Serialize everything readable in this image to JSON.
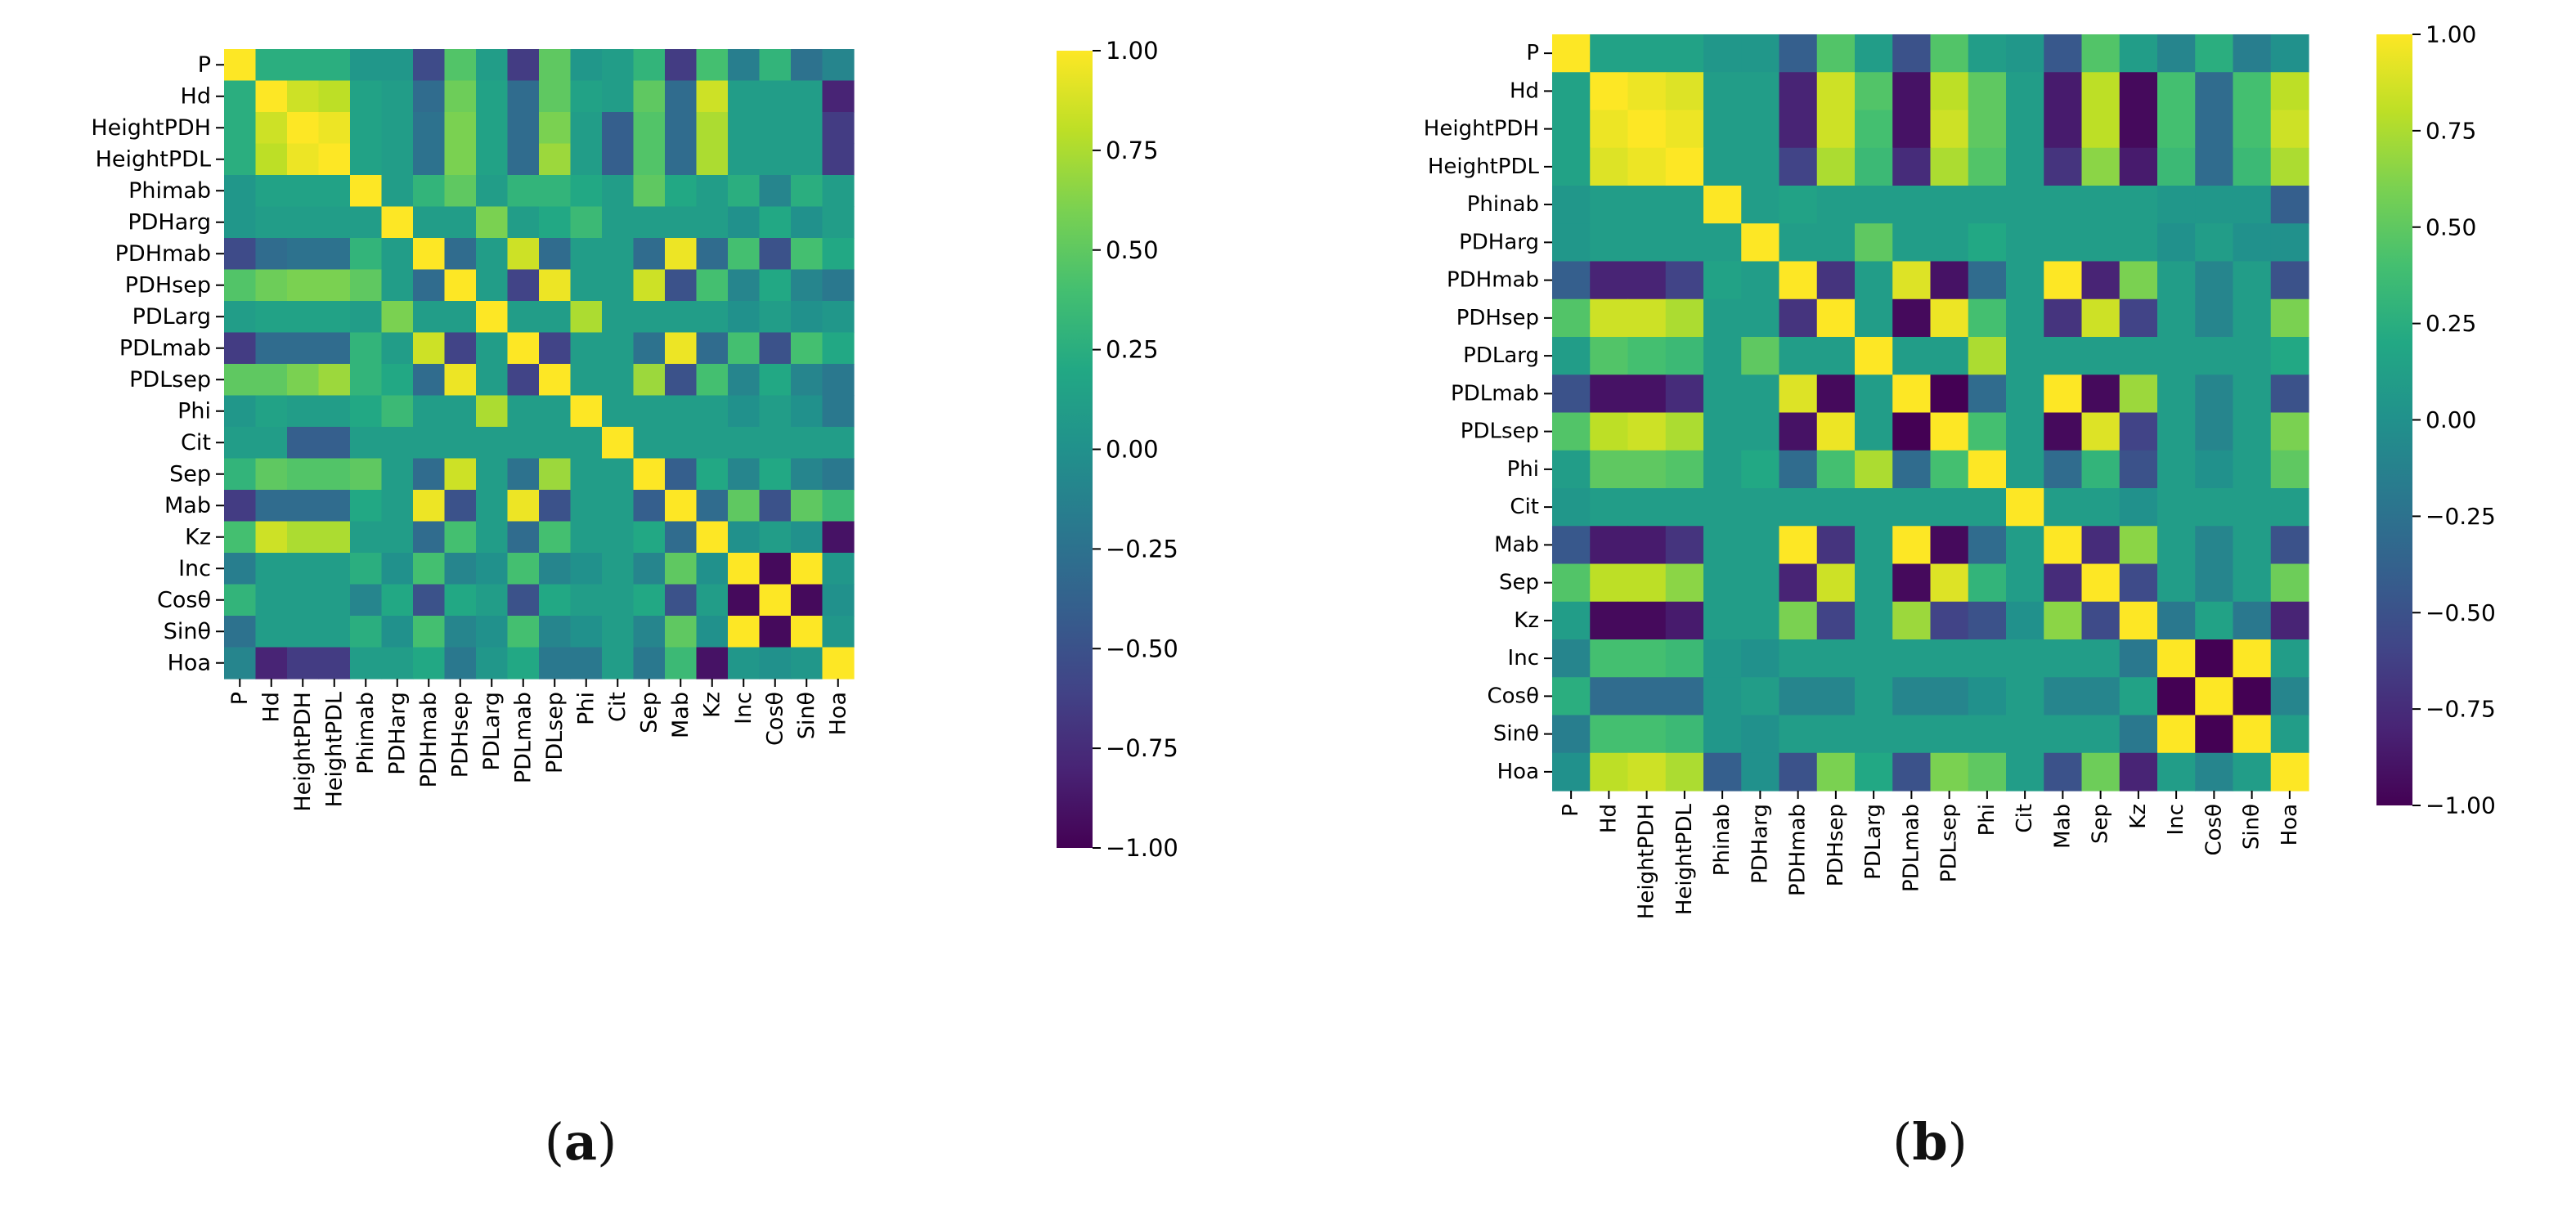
{
  "colormap": "viridis",
  "colorbar": {
    "ticks": [
      "1.00",
      "0.75",
      "0.50",
      "0.25",
      "0.00",
      "−0.25",
      "−0.50",
      "−0.75",
      "−1.00"
    ],
    "range": [
      -1,
      1
    ]
  },
  "captions": [
    {
      "open": "(",
      "letter": "a",
      "close": ")"
    },
    {
      "open": "(",
      "letter": "b",
      "close": ")"
    }
  ],
  "chart_data": [
    {
      "type": "heatmap",
      "panel": "a",
      "labels": [
        "P",
        "Hd",
        "HeightPDH",
        "HeightPDL",
        "Phimab",
        "PDHarg",
        "PDHmab",
        "PDHsep",
        "PDLarg",
        "PDLmab",
        "PDLsep",
        "Phi",
        "Cit",
        "Sep",
        "Mab",
        "Kz",
        "Inc",
        "Cosθ",
        "Sinθ",
        "Hoa"
      ],
      "vmin": -1,
      "vmax": 1,
      "matrix": [
        [
          1.0,
          0.25,
          0.25,
          0.25,
          0.05,
          0.05,
          -0.55,
          0.45,
          0.1,
          -0.65,
          0.5,
          0.05,
          0.1,
          0.3,
          -0.65,
          0.4,
          -0.15,
          0.3,
          -0.25,
          -0.1
        ],
        [
          0.25,
          1.0,
          0.85,
          0.8,
          0.15,
          0.1,
          -0.3,
          0.55,
          0.15,
          -0.3,
          0.5,
          0.15,
          0.1,
          0.5,
          -0.3,
          0.85,
          0.1,
          0.1,
          0.1,
          -0.8
        ],
        [
          0.25,
          0.85,
          1.0,
          0.95,
          0.15,
          0.1,
          -0.25,
          0.6,
          0.15,
          -0.3,
          0.6,
          0.1,
          -0.4,
          0.45,
          -0.3,
          0.75,
          0.1,
          0.1,
          0.1,
          -0.65
        ],
        [
          0.25,
          0.8,
          0.95,
          1.0,
          0.15,
          0.1,
          -0.25,
          0.6,
          0.15,
          -0.3,
          0.7,
          0.1,
          -0.4,
          0.45,
          -0.3,
          0.75,
          0.1,
          0.1,
          0.1,
          -0.65
        ],
        [
          0.05,
          0.15,
          0.15,
          0.15,
          1.0,
          0.1,
          0.3,
          0.5,
          0.1,
          0.3,
          0.3,
          0.2,
          0.1,
          0.5,
          0.2,
          0.1,
          0.25,
          -0.1,
          0.25,
          0.1
        ],
        [
          0.05,
          0.1,
          0.1,
          0.1,
          0.1,
          1.0,
          0.1,
          0.1,
          0.6,
          0.1,
          0.2,
          0.35,
          0.1,
          0.1,
          0.1,
          0.1,
          0.0,
          0.2,
          0.0,
          0.1
        ],
        [
          -0.55,
          -0.3,
          -0.25,
          -0.25,
          0.3,
          0.1,
          1.0,
          -0.3,
          0.1,
          0.85,
          -0.3,
          0.1,
          0.1,
          -0.3,
          0.95,
          -0.3,
          0.4,
          -0.5,
          0.4,
          0.2
        ],
        [
          0.45,
          0.55,
          0.6,
          0.6,
          0.5,
          0.1,
          -0.3,
          1.0,
          0.1,
          -0.6,
          0.95,
          0.1,
          0.1,
          0.85,
          -0.5,
          0.4,
          -0.1,
          0.2,
          -0.1,
          -0.2
        ],
        [
          0.1,
          0.15,
          0.15,
          0.15,
          0.1,
          0.6,
          0.1,
          0.1,
          1.0,
          0.1,
          0.1,
          0.75,
          0.1,
          0.1,
          0.1,
          0.1,
          0.0,
          0.1,
          0.0,
          0.05
        ],
        [
          -0.65,
          -0.3,
          -0.3,
          -0.3,
          0.3,
          0.1,
          0.85,
          -0.6,
          0.1,
          1.0,
          -0.6,
          0.1,
          0.1,
          -0.25,
          0.95,
          -0.3,
          0.4,
          -0.5,
          0.4,
          0.2
        ],
        [
          0.5,
          0.5,
          0.6,
          0.7,
          0.3,
          0.2,
          -0.3,
          0.95,
          0.1,
          -0.6,
          1.0,
          0.1,
          0.1,
          0.7,
          -0.5,
          0.4,
          -0.1,
          0.2,
          -0.1,
          -0.2
        ],
        [
          0.05,
          0.15,
          0.1,
          0.1,
          0.2,
          0.35,
          0.1,
          0.1,
          0.75,
          0.1,
          0.1,
          1.0,
          0.1,
          0.1,
          0.1,
          0.1,
          0.0,
          0.1,
          0.0,
          -0.2
        ],
        [
          0.1,
          0.1,
          -0.4,
          -0.4,
          0.1,
          0.1,
          0.1,
          0.1,
          0.1,
          0.1,
          0.1,
          0.1,
          1.0,
          0.1,
          0.1,
          0.1,
          0.1,
          0.1,
          0.1,
          0.1
        ],
        [
          0.3,
          0.5,
          0.45,
          0.45,
          0.5,
          0.1,
          -0.3,
          0.85,
          0.1,
          -0.25,
          0.7,
          0.1,
          0.1,
          1.0,
          -0.4,
          0.2,
          -0.1,
          0.2,
          -0.1,
          -0.2
        ],
        [
          -0.65,
          -0.3,
          -0.3,
          -0.3,
          0.2,
          0.1,
          0.95,
          -0.5,
          0.1,
          0.95,
          -0.5,
          0.1,
          0.1,
          -0.4,
          1.0,
          -0.3,
          0.5,
          -0.5,
          0.5,
          0.35
        ],
        [
          0.4,
          0.85,
          0.75,
          0.75,
          0.1,
          0.1,
          -0.3,
          0.4,
          0.1,
          -0.3,
          0.4,
          0.1,
          0.1,
          0.2,
          -0.3,
          1.0,
          0.0,
          0.1,
          0.0,
          -0.9
        ],
        [
          -0.15,
          0.1,
          0.1,
          0.1,
          0.25,
          0.0,
          0.4,
          -0.1,
          0.0,
          0.4,
          -0.1,
          0.0,
          0.1,
          -0.1,
          0.5,
          0.0,
          1.0,
          -0.95,
          1.0,
          0.05
        ],
        [
          0.3,
          0.1,
          0.1,
          0.1,
          -0.1,
          0.2,
          -0.5,
          0.2,
          0.1,
          -0.5,
          0.2,
          0.1,
          0.1,
          0.2,
          -0.5,
          0.1,
          -0.95,
          1.0,
          -0.95,
          0.0
        ],
        [
          -0.25,
          0.1,
          0.1,
          0.1,
          0.25,
          0.0,
          0.4,
          -0.1,
          0.0,
          0.4,
          -0.1,
          0.0,
          0.1,
          -0.1,
          0.5,
          0.0,
          1.0,
          -0.95,
          1.0,
          0.05
        ],
        [
          -0.1,
          -0.8,
          -0.65,
          -0.65,
          0.1,
          0.1,
          0.2,
          -0.2,
          0.05,
          0.2,
          -0.2,
          -0.2,
          0.1,
          -0.2,
          0.35,
          -0.9,
          0.05,
          0.0,
          0.05,
          1.0
        ]
      ]
    },
    {
      "type": "heatmap",
      "panel": "b",
      "labels": [
        "P",
        "Hd",
        "HeightPDH",
        "HeightPDL",
        "Phinab",
        "PDHarg",
        "PDHmab",
        "PDHsep",
        "PDLarg",
        "PDLmab",
        "PDLsep",
        "Phi",
        "Cit",
        "Mab",
        "Sep",
        "Kz",
        "Inc",
        "Cosθ",
        "Sinθ",
        "Hoa"
      ],
      "vmin": -1,
      "vmax": 1,
      "matrix": [
        [
          1.0,
          0.15,
          0.15,
          0.15,
          0.05,
          0.05,
          -0.4,
          0.45,
          0.1,
          -0.5,
          0.45,
          0.1,
          0.05,
          -0.45,
          0.45,
          0.1,
          -0.1,
          0.25,
          -0.15,
          0.0
        ],
        [
          0.15,
          1.0,
          0.95,
          0.9,
          0.1,
          0.1,
          -0.8,
          0.85,
          0.45,
          -0.9,
          0.8,
          0.5,
          0.1,
          -0.85,
          0.8,
          -0.95,
          0.4,
          -0.3,
          0.4,
          0.8
        ],
        [
          0.15,
          0.95,
          1.0,
          0.95,
          0.1,
          0.1,
          -0.8,
          0.85,
          0.4,
          -0.9,
          0.85,
          0.5,
          0.1,
          -0.85,
          0.8,
          -0.95,
          0.4,
          -0.3,
          0.4,
          0.85
        ],
        [
          0.15,
          0.9,
          0.95,
          1.0,
          0.1,
          0.1,
          -0.6,
          0.75,
          0.35,
          -0.75,
          0.75,
          0.45,
          0.1,
          -0.7,
          0.65,
          -0.85,
          0.35,
          -0.3,
          0.35,
          0.75
        ],
        [
          0.05,
          0.1,
          0.1,
          0.1,
          1.0,
          0.1,
          0.15,
          0.1,
          0.1,
          0.1,
          0.1,
          0.1,
          0.1,
          0.1,
          0.1,
          0.1,
          0.05,
          0.05,
          0.05,
          -0.4
        ],
        [
          0.05,
          0.1,
          0.1,
          0.1,
          0.1,
          1.0,
          0.1,
          0.1,
          0.5,
          0.1,
          0.1,
          0.2,
          0.1,
          0.1,
          0.1,
          0.1,
          0.0,
          0.1,
          0.0,
          0.0
        ],
        [
          -0.4,
          -0.8,
          -0.8,
          -0.6,
          0.15,
          0.1,
          1.0,
          -0.7,
          0.1,
          0.9,
          -0.9,
          -0.3,
          0.1,
          1.0,
          -0.8,
          0.6,
          0.1,
          -0.1,
          0.1,
          -0.5
        ],
        [
          0.45,
          0.85,
          0.85,
          0.75,
          0.1,
          0.1,
          -0.7,
          1.0,
          0.1,
          -0.95,
          0.95,
          0.4,
          0.1,
          -0.7,
          0.85,
          -0.6,
          0.1,
          -0.1,
          0.1,
          0.6
        ],
        [
          0.1,
          0.45,
          0.4,
          0.35,
          0.1,
          0.5,
          0.1,
          0.1,
          1.0,
          0.1,
          0.1,
          0.75,
          0.1,
          0.1,
          0.1,
          0.1,
          0.1,
          0.1,
          0.1,
          0.2
        ],
        [
          -0.5,
          -0.9,
          -0.9,
          -0.75,
          0.1,
          0.1,
          0.9,
          -0.95,
          0.1,
          1.0,
          -1.0,
          -0.3,
          0.1,
          1.0,
          -0.95,
          0.7,
          0.1,
          -0.1,
          0.1,
          -0.5
        ],
        [
          0.45,
          0.8,
          0.85,
          0.75,
          0.1,
          0.1,
          -0.9,
          0.95,
          0.1,
          -1.0,
          1.0,
          0.4,
          0.1,
          -0.95,
          0.9,
          -0.6,
          0.1,
          -0.1,
          0.1,
          0.6
        ],
        [
          0.1,
          0.5,
          0.5,
          0.45,
          0.1,
          0.2,
          -0.3,
          0.4,
          0.75,
          -0.3,
          0.4,
          1.0,
          0.1,
          -0.3,
          0.3,
          -0.5,
          0.1,
          0.0,
          0.1,
          0.5
        ],
        [
          0.05,
          0.1,
          0.1,
          0.1,
          0.1,
          0.1,
          0.1,
          0.1,
          0.1,
          0.1,
          0.1,
          0.1,
          1.0,
          0.1,
          0.1,
          0.0,
          0.1,
          0.1,
          0.1,
          0.1
        ],
        [
          -0.45,
          -0.85,
          -0.85,
          -0.7,
          0.1,
          0.1,
          1.0,
          -0.7,
          0.1,
          1.0,
          -0.95,
          -0.3,
          0.1,
          1.0,
          -0.75,
          0.65,
          0.1,
          -0.1,
          0.1,
          -0.5
        ],
        [
          0.45,
          0.8,
          0.8,
          0.65,
          0.1,
          0.1,
          -0.8,
          0.85,
          0.1,
          -0.95,
          0.9,
          0.3,
          0.1,
          -0.75,
          1.0,
          -0.55,
          0.1,
          -0.1,
          0.1,
          0.55
        ],
        [
          0.1,
          -0.95,
          -0.95,
          -0.85,
          0.1,
          0.1,
          0.6,
          -0.6,
          0.1,
          0.7,
          -0.6,
          -0.5,
          0.0,
          0.65,
          -0.55,
          1.0,
          -0.2,
          0.15,
          -0.2,
          -0.8
        ],
        [
          -0.1,
          0.4,
          0.4,
          0.35,
          0.05,
          0.0,
          0.1,
          0.1,
          0.1,
          0.1,
          0.1,
          0.1,
          0.1,
          0.1,
          0.1,
          -0.2,
          1.0,
          -1.0,
          1.0,
          0.1
        ],
        [
          0.25,
          -0.3,
          -0.3,
          -0.3,
          0.05,
          0.1,
          -0.1,
          -0.1,
          0.1,
          -0.1,
          -0.1,
          0.0,
          0.1,
          -0.1,
          -0.1,
          0.15,
          -1.0,
          1.0,
          -1.0,
          -0.1
        ],
        [
          -0.15,
          0.4,
          0.4,
          0.35,
          0.05,
          0.0,
          0.1,
          0.1,
          0.1,
          0.1,
          0.1,
          0.1,
          0.1,
          0.1,
          0.1,
          -0.2,
          1.0,
          -1.0,
          1.0,
          0.1
        ],
        [
          0.0,
          0.8,
          0.85,
          0.75,
          -0.4,
          0.0,
          -0.5,
          0.6,
          0.2,
          -0.5,
          0.6,
          0.5,
          0.1,
          -0.5,
          0.55,
          -0.8,
          0.1,
          -0.1,
          0.1,
          1.0
        ]
      ]
    }
  ]
}
